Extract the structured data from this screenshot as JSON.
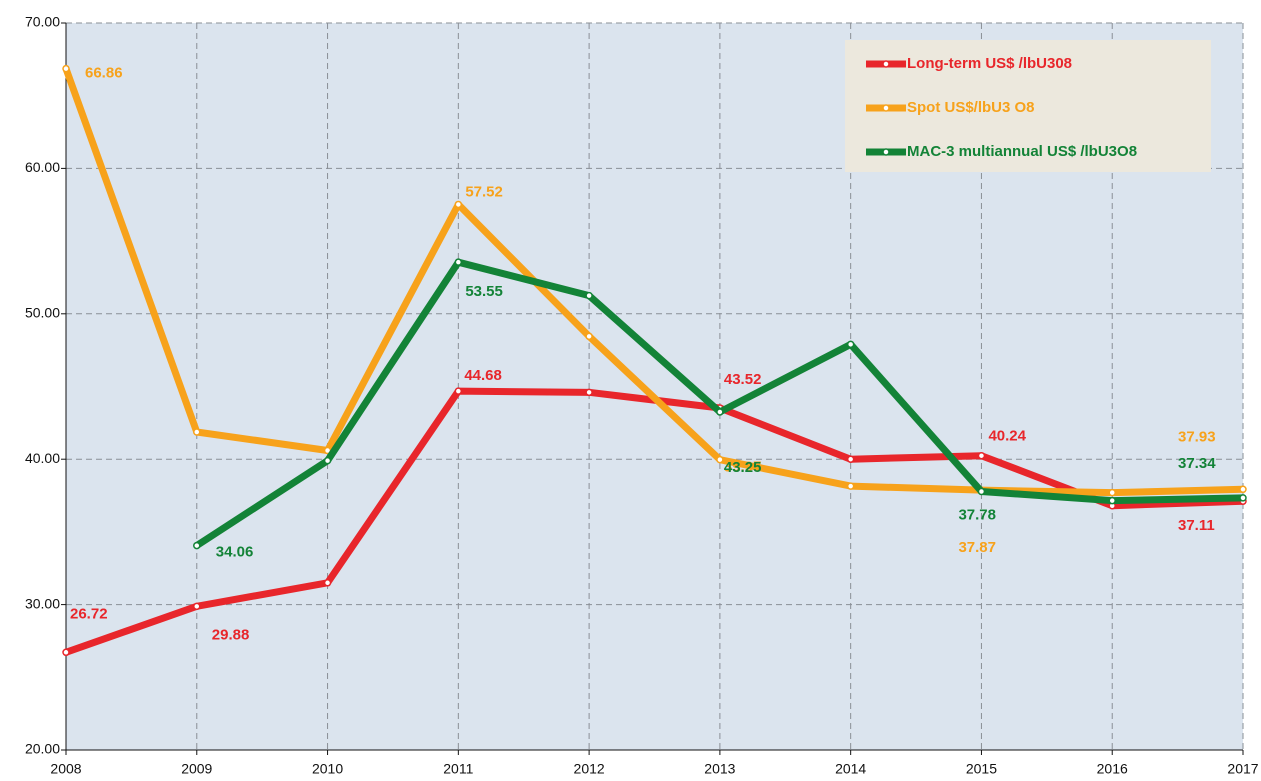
{
  "chart_data": {
    "type": "line",
    "categories": [
      "2008",
      "2009",
      "2010",
      "2011",
      "2012",
      "2013",
      "2014",
      "2015",
      "2016",
      "2017"
    ],
    "series": [
      {
        "name": "Long-term US$ /lbU308",
        "color": "#e8262b",
        "values": [
          26.72,
          29.88,
          31.5,
          44.68,
          44.6,
          43.52,
          40.0,
          40.24,
          36.8,
          37.11
        ],
        "value_labels": [
          "26.72",
          "29.88",
          null,
          "44.68",
          null,
          "43.52",
          null,
          "40.24",
          null,
          "37.11"
        ]
      },
      {
        "name": "Spot US$/lbU3 O8",
        "color": "#f7a21b",
        "values": [
          66.86,
          41.87,
          40.6,
          57.52,
          48.45,
          39.97,
          38.15,
          37.87,
          37.7,
          37.93
        ],
        "value_labels": [
          "66.86",
          null,
          null,
          "57.52",
          null,
          "39.97",
          null,
          "37.87",
          null,
          "37.93"
        ]
      },
      {
        "name": "MAC-3 multiannual US$ /lbU3O8",
        "color": "#138337",
        "values": [
          null,
          34.06,
          39.9,
          53.55,
          51.25,
          43.25,
          47.9,
          37.78,
          37.15,
          37.34
        ],
        "value_labels": [
          null,
          "34.06",
          null,
          "53.55",
          null,
          "43.25",
          null,
          "37.78",
          null,
          "37.34"
        ]
      }
    ],
    "ylim": [
      20,
      70
    ],
    "yticks": [
      {
        "value": 20,
        "label": "20.00"
      },
      {
        "value": 30,
        "label": "30.00"
      },
      {
        "value": 40,
        "label": "40.00"
      },
      {
        "value": 50,
        "label": "50.00"
      },
      {
        "value": 60,
        "label": "60.00"
      },
      {
        "value": 70,
        "label": "70.00"
      }
    ],
    "grid": true
  }
}
